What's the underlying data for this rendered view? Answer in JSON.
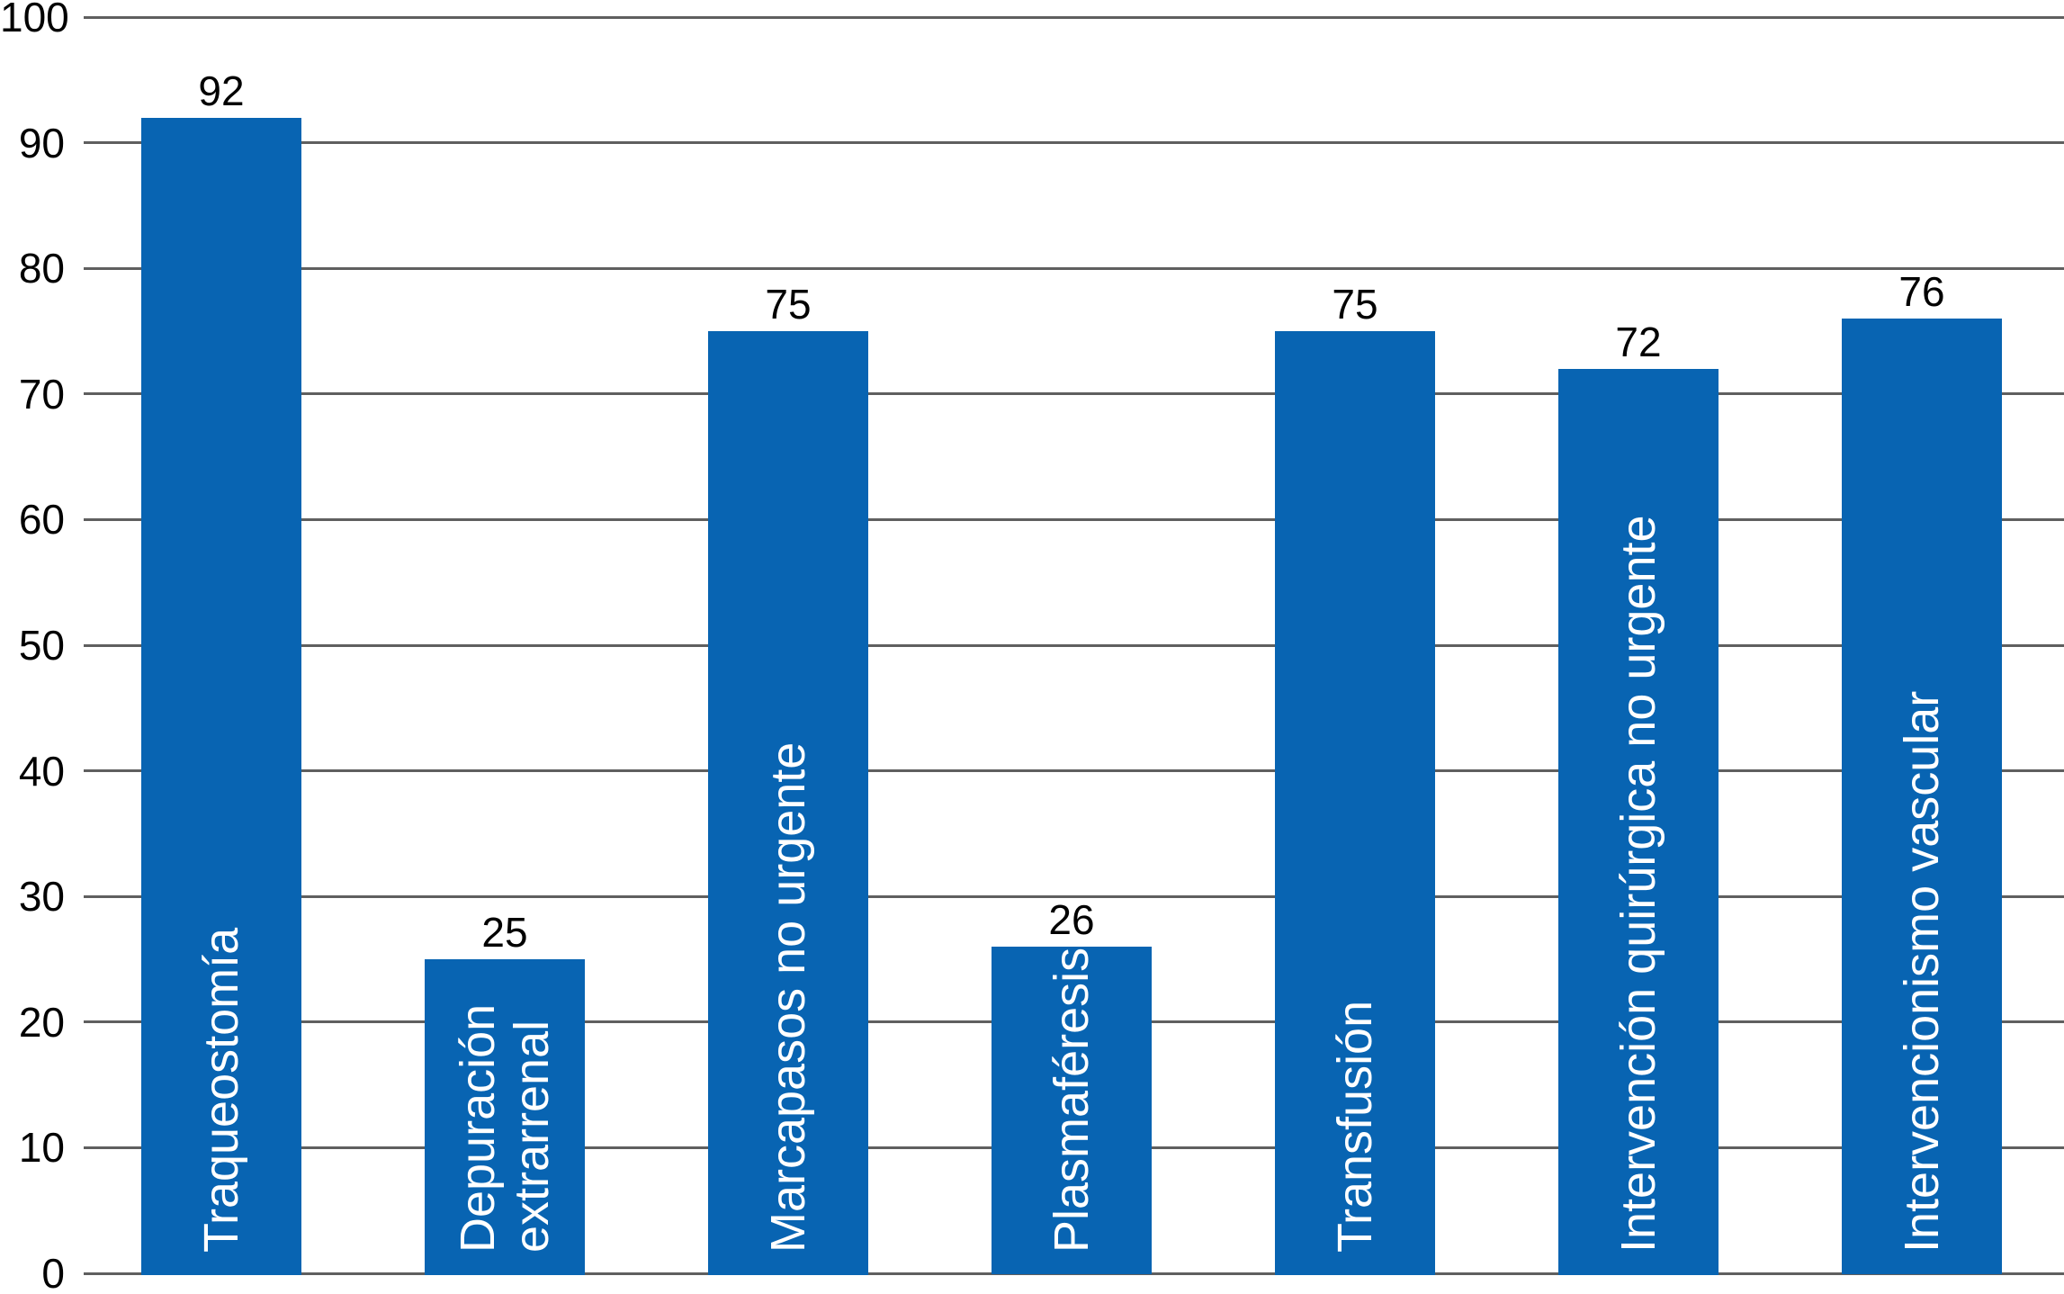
{
  "chart_data": {
    "type": "bar",
    "title": "",
    "xlabel": "",
    "ylabel": "",
    "categories": [
      "Traqueostomía",
      "Depuración extrarrenal",
      "Marcapasos no urgente",
      "Plasmaféresis",
      "Transfusión",
      "Intervención quirúrgica no urgente",
      "Intervencionismo vascular"
    ],
    "category_lines": [
      [
        "Traqueostomía"
      ],
      [
        "Depuración",
        "extrarrenal"
      ],
      [
        "Marcapasos no urgente"
      ],
      [
        "Plasmaféresis"
      ],
      [
        "Transfusión"
      ],
      [
        "Intervención quirúrgica no urgente"
      ],
      [
        "Intervencionismo vascular"
      ]
    ],
    "values": [
      92,
      25,
      75,
      26,
      75,
      72,
      76
    ],
    "value_labels": [
      "92",
      "25",
      "75",
      "26",
      "75",
      "72",
      "76"
    ],
    "ylim": [
      0,
      100
    ],
    "ytick_step": 10,
    "yticks": [
      "0",
      "10",
      "20",
      "30",
      "40",
      "50",
      "60",
      "70",
      "80",
      "90",
      "100"
    ],
    "grid": true,
    "legend_position": "none",
    "colors": {
      "bar": "#0864b2",
      "gridline": "#5f5f5f",
      "tick_label": "#000000",
      "value_label": "#000000",
      "bar_label": "#ffffff",
      "background": "#ffffff"
    }
  }
}
